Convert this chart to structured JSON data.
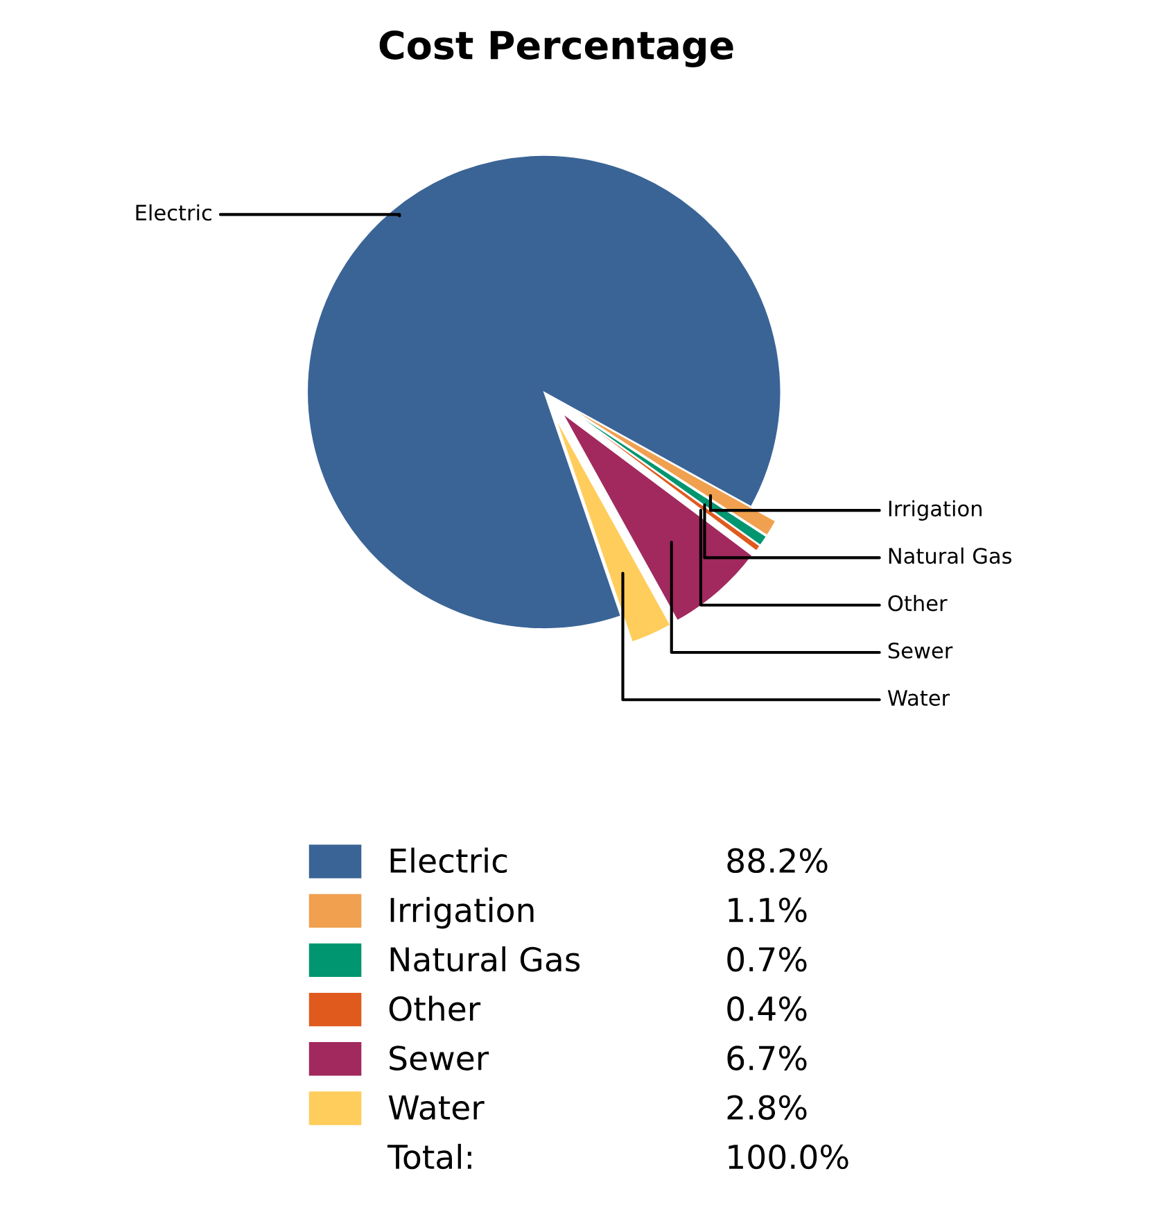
{
  "chart_data": {
    "type": "pie",
    "title": "Cost Percentage",
    "categories": [
      "Electric",
      "Irrigation",
      "Natural Gas",
      "Other",
      "Sewer",
      "Water"
    ],
    "values": [
      88.2,
      1.1,
      0.7,
      0.4,
      6.7,
      2.8
    ],
    "value_labels": [
      "88.2%",
      "1.1%",
      "0.7%",
      "0.4%",
      "6.7%",
      "2.8%"
    ],
    "colors": [
      "#3a6496",
      "#f0a04f",
      "#009670",
      "#e05a1e",
      "#a2295e",
      "#ffcd5c"
    ],
    "legend": "bottom",
    "annotations": [
      "Total:",
      "100.0%"
    ]
  }
}
